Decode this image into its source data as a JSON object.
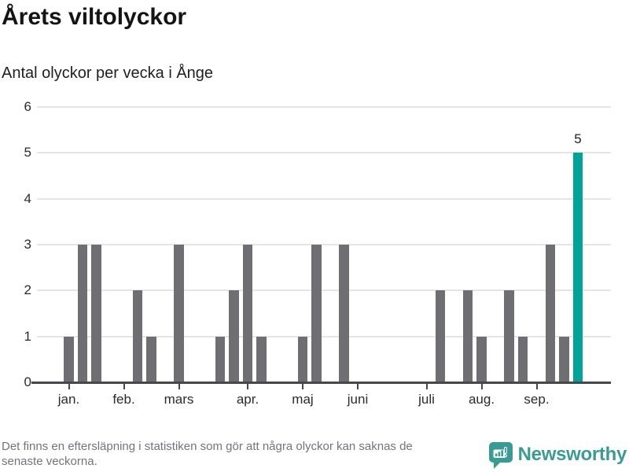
{
  "chart_data": {
    "type": "bar",
    "title": "Årets viltolyckor",
    "subtitle": "Antal olyckor per vecka i Ånge",
    "ylabel": "",
    "xlabel": "",
    "ylim": [
      0,
      6
    ],
    "yticks": [
      0,
      1,
      2,
      3,
      4,
      5,
      6
    ],
    "grid": "horizontal",
    "categories_unit": "week",
    "values": [
      1,
      3,
      3,
      0,
      0,
      2,
      1,
      0,
      3,
      0,
      0,
      1,
      2,
      3,
      1,
      0,
      0,
      1,
      3,
      0,
      3,
      0,
      0,
      0,
      0,
      0,
      0,
      2,
      0,
      2,
      1,
      0,
      2,
      1,
      0,
      3,
      1,
      5
    ],
    "xticks": [
      {
        "label": "jan.",
        "week_index": 0
      },
      {
        "label": "feb.",
        "week_index": 4
      },
      {
        "label": "mars",
        "week_index": 8
      },
      {
        "label": "apr.",
        "week_index": 13
      },
      {
        "label": "maj",
        "week_index": 17
      },
      {
        "label": "juni",
        "week_index": 21
      },
      {
        "label": "juli",
        "week_index": 26
      },
      {
        "label": "aug.",
        "week_index": 30
      },
      {
        "label": "sep.",
        "week_index": 34
      }
    ],
    "bar_color": "#6e6e73",
    "highlight_color": "#00a39a",
    "highlight_last": true,
    "last_value_label": "5"
  },
  "footer": {
    "line1": "Det finns en eftersläpning i statistiken som gör att några olyckor kan saknas de",
    "line2": "senaste veckorna."
  },
  "branding": {
    "name": "Newsworthy",
    "color": "#3a9b94"
  }
}
